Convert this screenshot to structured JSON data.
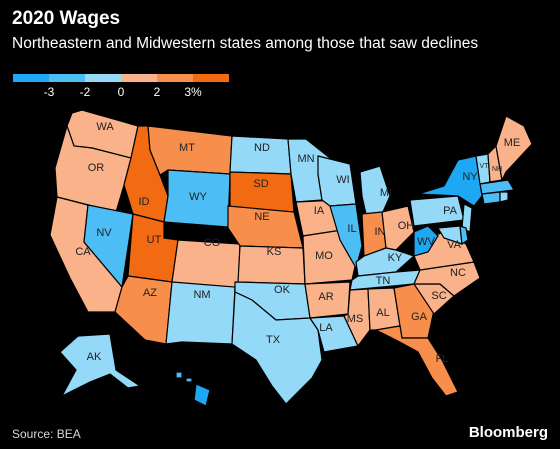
{
  "title": "2020 Wages",
  "subtitle": "Northeastern and Midwestern states among those that saw declines",
  "source": "Source: BEA",
  "brand": "Bloomberg",
  "legend": {
    "colors": [
      "#1ea7f2",
      "#4dbdf5",
      "#94d9f7",
      "#f9b28a",
      "#f78e4c",
      "#f26a12"
    ],
    "ticks": [
      "-3",
      "-2",
      "0",
      "2",
      "3%"
    ]
  },
  "colors": {
    "dark_blue": "#1ea7f2",
    "mid_blue": "#4dbdf5",
    "light_blue": "#94d9f7",
    "light_orange": "#f9b28a",
    "mid_orange": "#f78e4c",
    "dark_orange": "#f26a12"
  },
  "states": {
    "WA": "WA",
    "OR": "OR",
    "CA": "CA",
    "NV": "NV",
    "ID": "ID",
    "MT": "MT",
    "WY": "WY",
    "UT": "UT",
    "AZ": "AZ",
    "CO": "CO",
    "NM": "NM",
    "ND": "ND",
    "SD": "SD",
    "NE": "NE",
    "KS": "KS",
    "OK": "OK",
    "TX": "TX",
    "MN": "MN",
    "IA": "IA",
    "MO": "MO",
    "AR": "AR",
    "LA": "LA",
    "WI": "WI",
    "IL": "IL",
    "MI": "MI",
    "IN": "IN",
    "OH": "OH",
    "KY": "KY",
    "TN": "TN",
    "MS": "MS",
    "AL": "AL",
    "GA": "GA",
    "FL": "FL",
    "SC": "SC",
    "NC": "NC",
    "VA": "VA",
    "WV": "WV",
    "PA": "PA",
    "NY": "NY",
    "VT": "VT",
    "NH": "NH",
    "ME": "ME",
    "AK": "AK"
  }
}
